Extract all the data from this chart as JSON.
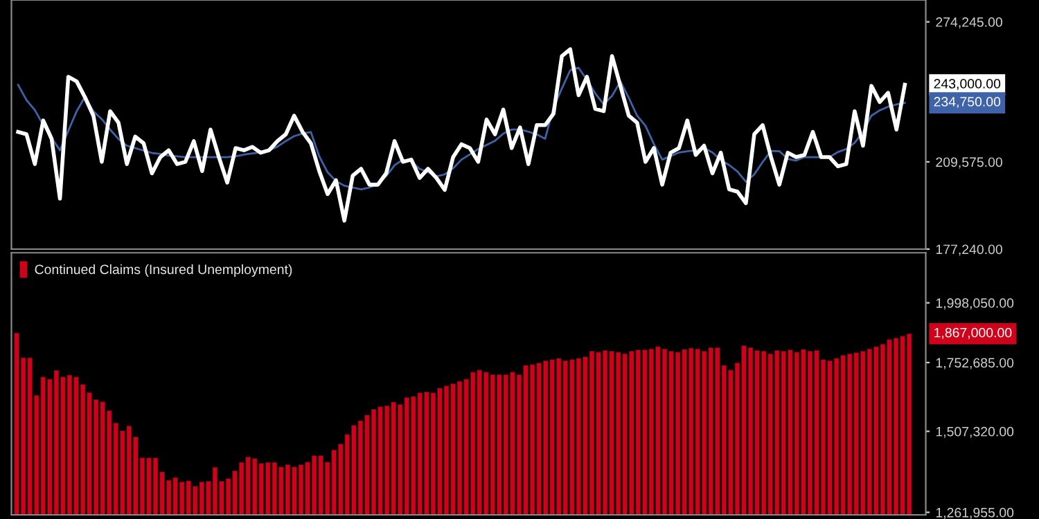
{
  "chart_data": [
    {
      "type": "line",
      "log": "y",
      "tick_labels": "y",
      "ylim": [
        177240,
        286000
      ],
      "yticks": [
        {
          "value": 177240,
          "label": "177,240.00"
        },
        {
          "value": 209575,
          "label": "209,575.00"
        },
        {
          "value": 274245,
          "label": "274,245.00"
        }
      ],
      "annotations": [
        "243,000.00",
        "234,750.00"
      ],
      "categories": [
        null,
        null,
        null,
        null,
        null,
        null,
        null,
        null,
        null,
        null,
        null,
        null,
        null,
        null,
        null,
        null,
        null,
        null,
        null,
        null,
        null,
        null,
        null,
        null,
        null,
        null,
        null,
        null,
        null,
        null,
        null,
        null,
        null,
        null,
        null,
        null,
        null,
        null,
        null,
        null,
        null,
        null,
        null,
        null,
        null,
        null,
        null,
        null,
        null,
        null,
        null,
        null,
        null,
        null,
        null,
        null,
        null,
        null,
        null,
        null,
        null,
        null,
        null,
        null,
        null,
        null,
        null,
        null,
        null,
        null,
        null,
        null,
        null,
        null,
        null,
        null,
        null,
        null,
        null,
        null,
        null,
        null,
        null,
        null,
        null,
        null,
        null,
        null,
        null,
        null,
        null,
        null,
        null,
        null,
        null,
        null,
        null,
        null,
        null,
        null,
        null,
        null,
        null,
        null,
        null,
        null,
        null
      ],
      "series": [
        {
          "color": "#ffffff",
          "values": [
            222000,
            221000,
            208700,
            226900,
            219100,
            195300,
            246800,
            244600,
            237200,
            229000,
            209600,
            231000,
            225900,
            208700,
            220000,
            217200,
            205000,
            211500,
            214300,
            208700,
            209600,
            218100,
            205900,
            223000,
            211500,
            201400,
            215200,
            214300,
            215700,
            213300,
            214300,
            218100,
            221000,
            229000,
            222000,
            217200,
            205900,
            197000,
            202300,
            187200,
            204100,
            206800,
            200600,
            200600,
            205000,
            218100,
            209600,
            210500,
            203200,
            206800,
            203200,
            198600,
            211500,
            216800,
            215200,
            209600,
            227300,
            221000,
            231700,
            215200,
            223900,
            208700,
            224900,
            224900,
            229900,
            256800,
            260200,
            238200,
            246800,
            232000,
            231000,
            256800,
            242500,
            229000,
            225900,
            209600,
            215200,
            200600,
            213300,
            215200,
            226900,
            212400,
            216200,
            205000,
            213300,
            198800,
            197900,
            193600,
            221000,
            224900,
            211500,
            200600,
            213300,
            211500,
            212400,
            222000,
            211500,
            211500,
            207800,
            208700,
            231000,
            216200,
            242500,
            235100,
            239300,
            223000,
            243000
          ]
        },
        {
          "color": "#3f63a8",
          "values": [
            243000,
            236000,
            231500,
            225000,
            219500,
            214300,
            222500,
            231000,
            237500,
            231000,
            227500,
            223000,
            219000,
            216200,
            215200,
            214200,
            213200,
            212800,
            212100,
            211800,
            211500,
            211500,
            211500,
            211500,
            211500,
            211500,
            211800,
            212500,
            213000,
            213400,
            214300,
            215800,
            218100,
            220200,
            221300,
            221900,
            211800,
            205400,
            202000,
            200200,
            199500,
            198800,
            199500,
            200900,
            203900,
            208200,
            210500,
            209800,
            206800,
            205500,
            203800,
            204600,
            207000,
            210500,
            212600,
            214800,
            216500,
            218200,
            221300,
            223000,
            223000,
            222100,
            220900,
            219100,
            232600,
            241300,
            249900,
            251100,
            245300,
            239000,
            234100,
            237900,
            244600,
            237000,
            229000,
            224600,
            216900,
            210500,
            211900,
            213400,
            213900,
            214300,
            215200,
            213400,
            210300,
            208300,
            205700,
            201700,
            204600,
            209500,
            214000,
            213900,
            210800,
            210100,
            211500,
            211500,
            211500,
            211500,
            213600,
            214800,
            217400,
            221900,
            229000,
            231400,
            233000,
            234000,
            234750
          ]
        }
      ]
    },
    {
      "type": "bar",
      "log": "y",
      "tick_labels": "y",
      "legend": "top left",
      "ylim": [
        1255000,
        2230000
      ],
      "yticks": [
        {
          "value": 1261955,
          "label": "1,261,955.00"
        },
        {
          "value": 1507320,
          "label": "1,507,320.00"
        },
        {
          "value": 1752685,
          "label": "1,752,685.00"
        },
        {
          "value": 1998050,
          "label": "1,998,050.00"
        }
      ],
      "annotations": [
        "1,867,000.00"
      ],
      "categories": [
        null,
        null,
        null,
        null,
        null,
        null,
        null,
        null,
        null,
        null,
        null,
        null,
        null,
        null,
        null,
        null,
        null,
        null,
        null,
        null,
        null,
        null,
        null,
        null,
        null,
        null,
        null,
        null,
        null,
        null,
        null,
        null,
        null,
        null,
        null,
        null,
        null,
        null,
        null,
        null,
        null,
        null,
        null,
        null,
        null,
        null,
        null,
        null,
        null,
        null,
        null,
        null,
        null,
        null,
        null,
        null,
        null,
        null,
        null,
        null,
        null,
        null,
        null,
        null,
        null,
        null,
        null,
        null,
        null,
        null,
        null,
        null,
        null,
        null,
        null,
        null,
        null,
        null,
        null,
        null,
        null,
        null,
        null,
        null,
        null,
        null,
        null,
        null,
        null,
        null,
        null,
        null,
        null,
        null,
        null,
        null,
        null,
        null,
        null,
        null,
        null,
        null,
        null,
        null,
        null,
        null,
        null,
        null,
        null,
        null,
        null,
        null,
        null,
        null,
        null,
        null,
        null,
        null,
        null,
        null,
        null,
        null,
        null,
        null,
        null,
        null,
        null,
        null,
        null,
        null,
        null,
        null,
        null,
        null,
        null,
        null
      ],
      "series": [
        {
          "name": "Continued Claims (Insured Unemployment)",
          "color": "#d0021b",
          "values": [
            1870000,
            1771000,
            1771000,
            1631000,
            1698000,
            1690000,
            1723000,
            1698000,
            1705000,
            1698000,
            1671000,
            1641000,
            1616000,
            1608000,
            1577000,
            1535000,
            1509000,
            1525000,
            1489000,
            1422000,
            1422000,
            1422000,
            1379000,
            1354000,
            1362000,
            1349000,
            1352000,
            1336000,
            1349000,
            1351000,
            1393000,
            1351000,
            1359000,
            1382000,
            1408000,
            1425000,
            1420000,
            1405000,
            1408000,
            1408000,
            1394000,
            1401000,
            1394000,
            1401000,
            1409000,
            1429000,
            1429000,
            1409000,
            1447000,
            1466000,
            1497000,
            1527000,
            1543000,
            1562000,
            1582000,
            1591000,
            1594000,
            1607000,
            1599000,
            1623000,
            1627000,
            1640000,
            1643000,
            1640000,
            1657000,
            1665000,
            1673000,
            1682000,
            1690000,
            1716000,
            1724000,
            1716000,
            1707000,
            1707000,
            1707000,
            1716000,
            1707000,
            1742000,
            1745000,
            1751000,
            1760000,
            1764000,
            1769000,
            1760000,
            1764000,
            1769000,
            1775000,
            1797000,
            1793000,
            1800000,
            1797000,
            1793000,
            1787000,
            1797000,
            1802000,
            1802000,
            1806000,
            1815000,
            1806000,
            1797000,
            1793000,
            1804000,
            1809000,
            1806000,
            1797000,
            1811000,
            1811000,
            1742000,
            1724000,
            1751000,
            1819000,
            1811000,
            1800000,
            1797000,
            1787000,
            1800000,
            1797000,
            1802000,
            1793000,
            1804000,
            1797000,
            1800000,
            1764000,
            1760000,
            1769000,
            1781000,
            1787000,
            1791000,
            1797000,
            1806000,
            1815000,
            1825000,
            1843000,
            1849000,
            1857000,
            1867000
          ]
        }
      ]
    }
  ]
}
